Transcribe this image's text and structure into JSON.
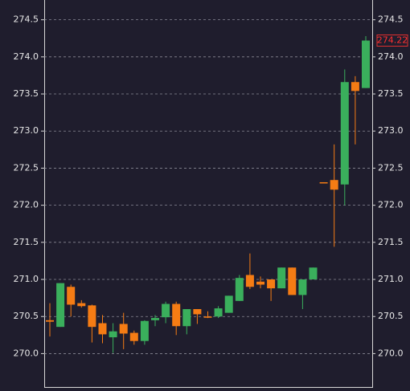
{
  "chart_data": {
    "type": "candlestick",
    "open": [
      270.45,
      270.36,
      270.9,
      270.68,
      270.65,
      270.41,
      270.22,
      270.4,
      270.28,
      270.17,
      270.45,
      270.49,
      270.67,
      270.37,
      270.6,
      270.5,
      270.5,
      270.55,
      270.71,
      271.06,
      270.97,
      271.0,
      270.88,
      271.16,
      270.79,
      271.0,
      272.31,
      272.34,
      272.28,
      273.66,
      273.58
    ],
    "high": [
      270.68,
      270.95,
      270.93,
      270.72,
      270.66,
      270.52,
      270.41,
      270.55,
      270.31,
      270.45,
      270.52,
      270.7,
      270.7,
      270.6,
      270.6,
      270.57,
      270.64,
      270.78,
      271.06,
      271.35,
      271.04,
      271.0,
      271.16,
      271.16,
      271.0,
      271.16,
      272.31,
      272.82,
      273.83,
      273.74,
      274.28
    ],
    "low": [
      270.23,
      270.36,
      270.5,
      270.62,
      270.15,
      270.14,
      270.01,
      270.06,
      270.12,
      270.12,
      270.37,
      270.41,
      270.25,
      270.26,
      270.4,
      270.48,
      270.48,
      270.55,
      270.71,
      270.87,
      270.88,
      270.71,
      270.88,
      270.79,
      270.6,
      271.0,
      272.3,
      271.44,
      272.0,
      272.82,
      273.58
    ],
    "close": [
      270.43,
      270.95,
      270.66,
      270.64,
      270.36,
      270.26,
      270.3,
      270.27,
      270.17,
      270.44,
      270.48,
      270.67,
      270.37,
      270.6,
      270.53,
      270.49,
      270.61,
      270.78,
      271.02,
      270.9,
      270.93,
      270.88,
      271.16,
      270.79,
      271.0,
      271.16,
      272.3,
      272.21,
      273.66,
      273.54,
      274.22
    ],
    "up_color": "#3aaf5c",
    "down_color": "#f57c14",
    "ylim": [
      269.55,
      274.68
    ],
    "yticks": [
      {
        "value": 270,
        "label": "270.0"
      },
      {
        "value": 270.5,
        "label": "270.5"
      },
      {
        "value": 271,
        "label": "271.0"
      },
      {
        "value": 271.5,
        "label": "271.5"
      },
      {
        "value": 272,
        "label": "272.0"
      },
      {
        "value": 272.5,
        "label": "272.5"
      },
      {
        "value": 273,
        "label": "273.0"
      },
      {
        "value": 273.5,
        "label": "273.5"
      },
      {
        "value": 274,
        "label": "274.0"
      },
      {
        "value": 274.5,
        "label": "274.5"
      }
    ],
    "grid": true,
    "last_price": {
      "value": 274.22,
      "label": "274.22"
    }
  }
}
